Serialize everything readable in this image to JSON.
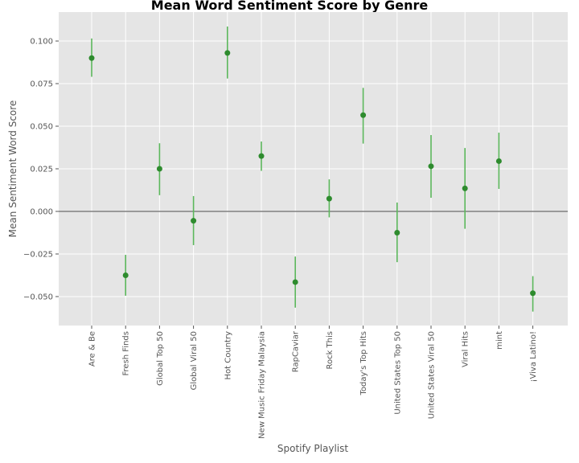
{
  "chart_data": {
    "type": "scatter",
    "title": "Mean Word Sentiment Score by Genre",
    "xlabel": "Spotify Playlist",
    "ylabel": "Mean Sentiment Word Score",
    "ylim": [
      -0.067,
      0.117
    ],
    "yticks": [
      -0.05,
      -0.025,
      0.0,
      0.025,
      0.05,
      0.075,
      0.1
    ],
    "ytick_labels": [
      "−0.050",
      "−0.025",
      "0.000",
      "0.025",
      "0.050",
      "0.075",
      "0.100"
    ],
    "categories": [
      "Are & Be",
      "Fresh Finds",
      "Global Top 50",
      "Global Viral 50",
      "Hot Country",
      "New Music Friday Malaysia",
      "RapCaviar",
      "Rock This",
      "Today's Top Hits",
      "United States Top 50",
      "United States Viral 50",
      "Viral Hits",
      "mint",
      "¡Viva Latino!"
    ],
    "values": [
      0.09,
      -0.0375,
      0.025,
      -0.0055,
      0.093,
      0.0325,
      -0.0415,
      0.0075,
      0.0565,
      -0.0125,
      0.0265,
      0.0135,
      0.0295,
      -0.048
    ],
    "err_low": [
      0.079,
      -0.0495,
      0.0095,
      -0.0198,
      0.078,
      0.0238,
      -0.0565,
      -0.0035,
      0.0398,
      -0.0298,
      0.008,
      -0.0102,
      0.0132,
      -0.0588
    ],
    "err_high": [
      0.1015,
      -0.0255,
      0.04,
      0.009,
      0.1085,
      0.041,
      -0.0265,
      0.0188,
      0.0725,
      0.0052,
      0.0448,
      0.0372,
      0.0462,
      -0.038
    ],
    "reference_line": 0.0,
    "grid": true,
    "colors": {
      "background": "#e5e5e5",
      "grid": "#ffffff",
      "point": "#2e8b2e",
      "errorbar": "#5cb85c",
      "reference": "#808080"
    }
  }
}
